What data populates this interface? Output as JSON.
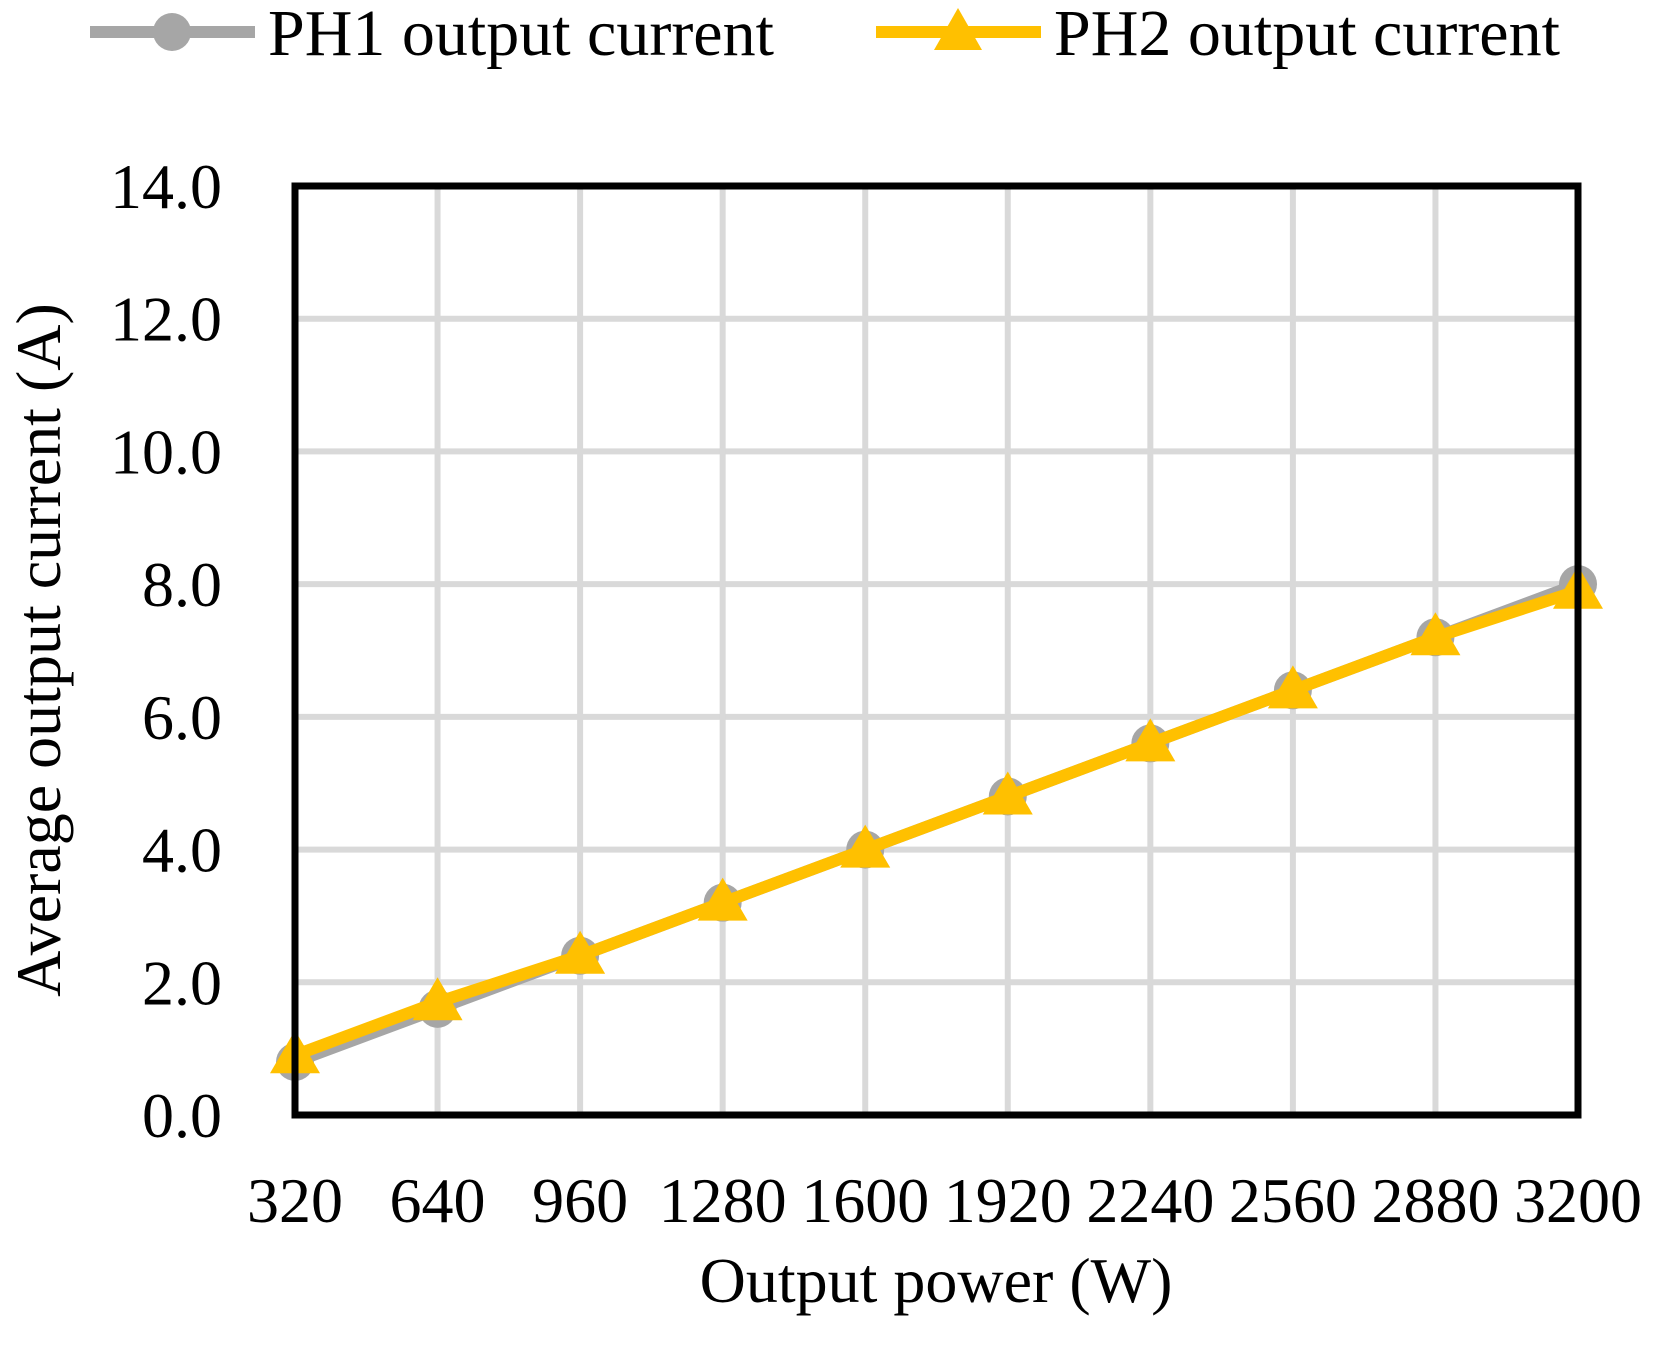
{
  "chart_data": {
    "type": "line",
    "xlabel": "Output power (W)",
    "ylabel": "Average output current (A)",
    "x": [
      320,
      640,
      960,
      1280,
      1600,
      1920,
      2240,
      2560,
      2880,
      3200
    ],
    "x_tick_labels": [
      "320",
      "640",
      "960",
      "1280",
      "1600",
      "1920",
      "2240",
      "2560",
      "2880",
      "3200"
    ],
    "ylim": [
      0,
      14
    ],
    "y_tick_labels": [
      "0.0",
      "2.0",
      "4.0",
      "6.0",
      "8.0",
      "10.0",
      "12.0",
      "14.0"
    ],
    "grid": true,
    "legend_position": "top",
    "series": [
      {
        "name": "PH1 output current",
        "color": "#A6A6A6",
        "marker": "circle",
        "values": [
          0.8,
          1.6,
          2.4,
          3.2,
          4.0,
          4.8,
          5.6,
          6.4,
          7.2,
          8.0
        ]
      },
      {
        "name": "PH2 output current",
        "color": "#FFC000",
        "marker": "triangle",
        "values": [
          0.9,
          1.7,
          2.4,
          3.2,
          4.0,
          4.8,
          5.6,
          6.4,
          7.2,
          7.9
        ]
      }
    ]
  }
}
